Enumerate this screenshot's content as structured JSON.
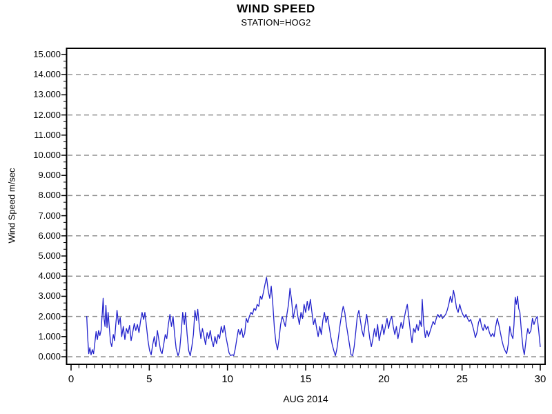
{
  "chart_data": {
    "type": "line",
    "title": "WIND SPEED",
    "subtitle": "STATION=HOG2",
    "xlabel": "AUG 2014",
    "ylabel": "Wind Speed m/sec",
    "legend": "none",
    "x_axis": {
      "min": 0,
      "max": 30,
      "major_ticks": [
        0,
        5,
        10,
        15,
        20,
        25,
        30
      ],
      "tick_labels": [
        "0",
        "5",
        "10",
        "15",
        "20",
        "25",
        "30"
      ],
      "minor_tick_step": 0.5
    },
    "y_axis": {
      "min": 0,
      "max": 15,
      "major_tick_step": 1,
      "minor_ticks_per_interval": 2,
      "tick_labels": [
        "0.000",
        "1.000",
        "2.000",
        "3.000",
        "4.000",
        "5.000",
        "6.000",
        "7.000",
        "8.000",
        "9.000",
        "10.000",
        "11.000",
        "12.000",
        "13.000",
        "14.000",
        "15.000"
      ]
    },
    "gridlines": {
      "values": [
        0,
        2,
        4,
        6,
        8,
        10,
        12,
        14
      ],
      "style": "dashed",
      "color": "#909090"
    },
    "colors": {
      "line": "#2222cc",
      "axis": "#000000",
      "grid": "#909090",
      "background": "#ffffff"
    },
    "series": [
      {
        "name": "WIND SPEED",
        "points": [
          [
            1.0,
            2.0
          ],
          [
            1.06,
            1.0
          ],
          [
            1.13,
            0.15
          ],
          [
            1.2,
            0.45
          ],
          [
            1.28,
            0.1
          ],
          [
            1.36,
            0.35
          ],
          [
            1.44,
            0.15
          ],
          [
            1.52,
            0.7
          ],
          [
            1.6,
            1.25
          ],
          [
            1.68,
            0.85
          ],
          [
            1.76,
            1.3
          ],
          [
            1.84,
            1.05
          ],
          [
            1.92,
            1.3
          ],
          [
            2.0,
            2.2
          ],
          [
            2.05,
            2.9
          ],
          [
            2.11,
            1.9
          ],
          [
            2.17,
            1.5
          ],
          [
            2.23,
            2.55
          ],
          [
            2.3,
            1.45
          ],
          [
            2.37,
            2.2
          ],
          [
            2.44,
            1.5
          ],
          [
            2.52,
            0.75
          ],
          [
            2.6,
            0.5
          ],
          [
            2.7,
            1.1
          ],
          [
            2.78,
            0.8
          ],
          [
            2.86,
            1.6
          ],
          [
            2.94,
            2.3
          ],
          [
            3.04,
            1.6
          ],
          [
            3.14,
            1.95
          ],
          [
            3.24,
            1.0
          ],
          [
            3.34,
            1.5
          ],
          [
            3.44,
            0.85
          ],
          [
            3.54,
            1.4
          ],
          [
            3.64,
            1.15
          ],
          [
            3.74,
            1.55
          ],
          [
            3.84,
            0.8
          ],
          [
            3.94,
            1.2
          ],
          [
            4.04,
            1.65
          ],
          [
            4.14,
            1.3
          ],
          [
            4.24,
            1.6
          ],
          [
            4.34,
            1.2
          ],
          [
            4.44,
            1.75
          ],
          [
            4.54,
            2.2
          ],
          [
            4.64,
            1.85
          ],
          [
            4.72,
            2.2
          ],
          [
            4.82,
            1.5
          ],
          [
            4.92,
            0.8
          ],
          [
            5.02,
            0.3
          ],
          [
            5.12,
            0.1
          ],
          [
            5.22,
            0.6
          ],
          [
            5.32,
            1.0
          ],
          [
            5.42,
            0.5
          ],
          [
            5.52,
            1.3
          ],
          [
            5.62,
            0.8
          ],
          [
            5.72,
            0.3
          ],
          [
            5.82,
            0.15
          ],
          [
            5.92,
            0.6
          ],
          [
            6.02,
            1.1
          ],
          [
            6.12,
            0.9
          ],
          [
            6.22,
            1.6
          ],
          [
            6.32,
            2.1
          ],
          [
            6.42,
            1.5
          ],
          [
            6.52,
            2.0
          ],
          [
            6.62,
            1.1
          ],
          [
            6.72,
            0.4
          ],
          [
            6.84,
            0.05
          ],
          [
            6.94,
            0.3
          ],
          [
            7.04,
            1.2
          ],
          [
            7.14,
            2.2
          ],
          [
            7.24,
            1.6
          ],
          [
            7.32,
            2.2
          ],
          [
            7.42,
            1.1
          ],
          [
            7.52,
            0.3
          ],
          [
            7.62,
            0.05
          ],
          [
            7.72,
            0.5
          ],
          [
            7.82,
            1.1
          ],
          [
            7.92,
            2.3
          ],
          [
            8.02,
            1.8
          ],
          [
            8.1,
            2.35
          ],
          [
            8.2,
            1.5
          ],
          [
            8.3,
            0.9
          ],
          [
            8.4,
            1.4
          ],
          [
            8.5,
            1.0
          ],
          [
            8.6,
            0.6
          ],
          [
            8.7,
            1.2
          ],
          [
            8.8,
            0.9
          ],
          [
            8.9,
            1.3
          ],
          [
            9.0,
            0.8
          ],
          [
            9.1,
            0.5
          ],
          [
            9.2,
            1.0
          ],
          [
            9.3,
            0.65
          ],
          [
            9.4,
            1.1
          ],
          [
            9.5,
            0.9
          ],
          [
            9.6,
            1.5
          ],
          [
            9.7,
            1.2
          ],
          [
            9.8,
            1.55
          ],
          [
            9.9,
            1.0
          ],
          [
            10.0,
            0.6
          ],
          [
            10.1,
            0.2
          ],
          [
            10.2,
            0.05
          ],
          [
            10.3,
            0.1
          ],
          [
            10.4,
            0.05
          ],
          [
            10.5,
            0.4
          ],
          [
            10.6,
            0.9
          ],
          [
            10.7,
            1.35
          ],
          [
            10.8,
            1.1
          ],
          [
            10.9,
            1.4
          ],
          [
            11.0,
            0.95
          ],
          [
            11.1,
            1.15
          ],
          [
            11.2,
            1.9
          ],
          [
            11.3,
            1.7
          ],
          [
            11.4,
            2.0
          ],
          [
            11.5,
            2.2
          ],
          [
            11.6,
            2.1
          ],
          [
            11.7,
            2.4
          ],
          [
            11.8,
            2.3
          ],
          [
            11.9,
            2.6
          ],
          [
            12.0,
            2.5
          ],
          [
            12.1,
            3.0
          ],
          [
            12.2,
            2.85
          ],
          [
            12.3,
            3.2
          ],
          [
            12.4,
            3.6
          ],
          [
            12.5,
            3.94
          ],
          [
            12.6,
            3.3
          ],
          [
            12.7,
            2.9
          ],
          [
            12.8,
            3.5
          ],
          [
            12.9,
            2.6
          ],
          [
            13.0,
            1.4
          ],
          [
            13.1,
            0.7
          ],
          [
            13.2,
            0.35
          ],
          [
            13.3,
            0.9
          ],
          [
            13.4,
            1.6
          ],
          [
            13.5,
            2.0
          ],
          [
            13.6,
            1.75
          ],
          [
            13.7,
            1.5
          ],
          [
            13.8,
            2.1
          ],
          [
            13.9,
            2.6
          ],
          [
            14.0,
            3.4
          ],
          [
            14.1,
            2.8
          ],
          [
            14.2,
            1.9
          ],
          [
            14.3,
            2.3
          ],
          [
            14.4,
            2.6
          ],
          [
            14.5,
            2.0
          ],
          [
            14.6,
            1.6
          ],
          [
            14.7,
            2.2
          ],
          [
            14.8,
            1.9
          ],
          [
            14.9,
            2.6
          ],
          [
            15.0,
            2.2
          ],
          [
            15.1,
            2.75
          ],
          [
            15.2,
            2.3
          ],
          [
            15.3,
            2.85
          ],
          [
            15.4,
            2.2
          ],
          [
            15.5,
            1.6
          ],
          [
            15.6,
            1.9
          ],
          [
            15.7,
            1.4
          ],
          [
            15.8,
            1.0
          ],
          [
            15.9,
            1.5
          ],
          [
            16.0,
            1.1
          ],
          [
            16.1,
            1.8
          ],
          [
            16.2,
            2.2
          ],
          [
            16.3,
            1.7
          ],
          [
            16.4,
            2.0
          ],
          [
            16.5,
            1.5
          ],
          [
            16.6,
            1.0
          ],
          [
            16.7,
            0.6
          ],
          [
            16.8,
            0.3
          ],
          [
            16.9,
            0.05
          ],
          [
            17.0,
            0.4
          ],
          [
            17.1,
            1.0
          ],
          [
            17.2,
            1.6
          ],
          [
            17.3,
            2.1
          ],
          [
            17.4,
            2.5
          ],
          [
            17.5,
            2.2
          ],
          [
            17.6,
            1.6
          ],
          [
            17.7,
            1.1
          ],
          [
            17.8,
            0.6
          ],
          [
            17.9,
            0.1
          ],
          [
            18.0,
            0.05
          ],
          [
            18.1,
            0.5
          ],
          [
            18.2,
            1.2
          ],
          [
            18.3,
            2.0
          ],
          [
            18.4,
            2.3
          ],
          [
            18.5,
            1.8
          ],
          [
            18.6,
            1.3
          ],
          [
            18.7,
            1.0
          ],
          [
            18.8,
            1.6
          ],
          [
            18.9,
            2.1
          ],
          [
            19.0,
            1.5
          ],
          [
            19.1,
            0.9
          ],
          [
            19.2,
            0.5
          ],
          [
            19.3,
            0.9
          ],
          [
            19.4,
            1.4
          ],
          [
            19.5,
            1.0
          ],
          [
            19.6,
            1.6
          ],
          [
            19.7,
            0.8
          ],
          [
            19.8,
            1.2
          ],
          [
            19.9,
            1.6
          ],
          [
            20.0,
            1.1
          ],
          [
            20.1,
            1.5
          ],
          [
            20.2,
            1.9
          ],
          [
            20.3,
            1.4
          ],
          [
            20.4,
            1.8
          ],
          [
            20.5,
            2.0
          ],
          [
            20.6,
            1.5
          ],
          [
            20.7,
            1.1
          ],
          [
            20.8,
            1.5
          ],
          [
            20.9,
            0.9
          ],
          [
            21.0,
            1.3
          ],
          [
            21.1,
            1.7
          ],
          [
            21.2,
            1.4
          ],
          [
            21.3,
            1.9
          ],
          [
            21.4,
            2.3
          ],
          [
            21.5,
            2.6
          ],
          [
            21.6,
            1.9
          ],
          [
            21.7,
            1.2
          ],
          [
            21.8,
            0.7
          ],
          [
            21.9,
            1.4
          ],
          [
            22.0,
            1.2
          ],
          [
            22.1,
            1.6
          ],
          [
            22.2,
            1.3
          ],
          [
            22.3,
            1.8
          ],
          [
            22.4,
            1.5
          ],
          [
            22.45,
            2.85
          ],
          [
            22.55,
            1.6
          ],
          [
            22.65,
            0.95
          ],
          [
            22.75,
            1.3
          ],
          [
            22.85,
            1.0
          ],
          [
            22.95,
            1.25
          ],
          [
            23.05,
            1.5
          ],
          [
            23.15,
            1.75
          ],
          [
            23.25,
            1.6
          ],
          [
            23.35,
            1.9
          ],
          [
            23.45,
            2.1
          ],
          [
            23.55,
            1.95
          ],
          [
            23.65,
            2.1
          ],
          [
            23.75,
            1.9
          ],
          [
            23.85,
            2.0
          ],
          [
            23.95,
            2.1
          ],
          [
            24.05,
            2.3
          ],
          [
            24.15,
            2.6
          ],
          [
            24.25,
            3.0
          ],
          [
            24.35,
            2.7
          ],
          [
            24.45,
            3.3
          ],
          [
            24.55,
            2.9
          ],
          [
            24.65,
            2.4
          ],
          [
            24.75,
            2.2
          ],
          [
            24.85,
            2.6
          ],
          [
            24.95,
            2.3
          ],
          [
            25.05,
            2.1
          ],
          [
            25.15,
            1.95
          ],
          [
            25.25,
            2.1
          ],
          [
            25.35,
            1.9
          ],
          [
            25.45,
            1.75
          ],
          [
            25.55,
            1.85
          ],
          [
            25.65,
            1.6
          ],
          [
            25.75,
            1.3
          ],
          [
            25.85,
            0.95
          ],
          [
            25.95,
            1.2
          ],
          [
            26.05,
            1.7
          ],
          [
            26.15,
            1.9
          ],
          [
            26.25,
            1.5
          ],
          [
            26.35,
            1.3
          ],
          [
            26.45,
            1.6
          ],
          [
            26.55,
            1.35
          ],
          [
            26.65,
            1.5
          ],
          [
            26.75,
            1.2
          ],
          [
            26.85,
            1.0
          ],
          [
            26.95,
            1.15
          ],
          [
            27.05,
            1.0
          ],
          [
            27.15,
            1.5
          ],
          [
            27.25,
            1.9
          ],
          [
            27.35,
            1.6
          ],
          [
            27.45,
            1.2
          ],
          [
            27.55,
            0.8
          ],
          [
            27.65,
            0.5
          ],
          [
            27.75,
            0.3
          ],
          [
            27.85,
            0.15
          ],
          [
            27.95,
            0.6
          ],
          [
            28.05,
            1.5
          ],
          [
            28.15,
            1.1
          ],
          [
            28.25,
            0.9
          ],
          [
            28.32,
            1.6
          ],
          [
            28.4,
            2.95
          ],
          [
            28.47,
            2.6
          ],
          [
            28.55,
            3.0
          ],
          [
            28.62,
            2.4
          ],
          [
            28.7,
            2.2
          ],
          [
            28.8,
            1.2
          ],
          [
            28.9,
            0.4
          ],
          [
            28.98,
            0.1
          ],
          [
            29.1,
            0.9
          ],
          [
            29.2,
            1.4
          ],
          [
            29.3,
            1.15
          ],
          [
            29.4,
            1.3
          ],
          [
            29.5,
            1.9
          ],
          [
            29.6,
            1.6
          ],
          [
            29.7,
            1.85
          ],
          [
            29.8,
            2.0
          ],
          [
            29.9,
            1.3
          ],
          [
            30.0,
            0.5
          ]
        ]
      }
    ]
  }
}
